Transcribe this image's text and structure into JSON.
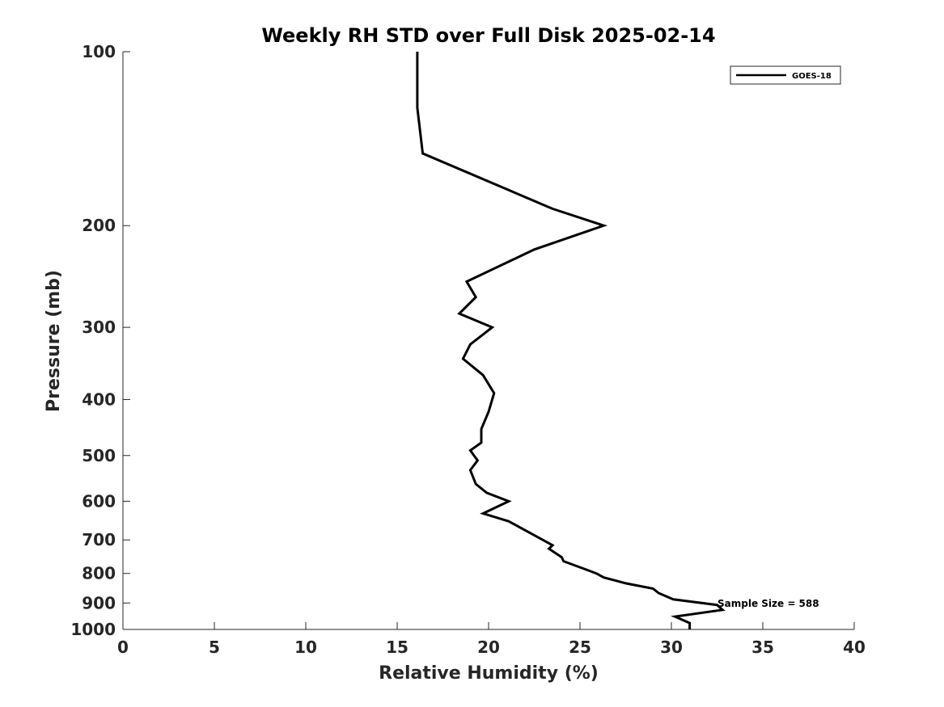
{
  "chart_data": {
    "type": "line",
    "title": "Weekly RH STD over Full Disk 2025-02-14",
    "xlabel": "Relative Humidity (%)",
    "ylabel": "Pressure (mb)",
    "xlim": [
      0,
      40
    ],
    "ylim": [
      100,
      1000
    ],
    "yscale": "log",
    "y_reversed": true,
    "x_ticks": [
      0,
      5,
      10,
      15,
      20,
      25,
      30,
      35,
      40
    ],
    "x_tick_labels": [
      "0",
      "5",
      "10",
      "15",
      "20",
      "25",
      "30",
      "35",
      "40"
    ],
    "y_ticks": [
      100,
      200,
      300,
      400,
      500,
      600,
      700,
      800,
      900,
      1000
    ],
    "y_tick_labels": [
      "100",
      "200",
      "300",
      "400",
      "500",
      "600",
      "700",
      "800",
      "900",
      "1000"
    ],
    "legend_position": "top-right",
    "series": [
      {
        "name": "GOES-18",
        "color": "#000000",
        "points": [
          [
            16.1,
            100
          ],
          [
            16.1,
            125
          ],
          [
            16.4,
            150
          ],
          [
            23.5,
            187
          ],
          [
            26.3,
            200
          ],
          [
            22.5,
            220
          ],
          [
            18.8,
            250
          ],
          [
            19.3,
            266
          ],
          [
            18.4,
            284
          ],
          [
            20.2,
            300
          ],
          [
            19.0,
            321
          ],
          [
            18.6,
            340
          ],
          [
            19.7,
            363
          ],
          [
            20.3,
            390
          ],
          [
            20.0,
            420
          ],
          [
            19.6,
            450
          ],
          [
            19.6,
            475
          ],
          [
            19.0,
            490
          ],
          [
            19.4,
            510
          ],
          [
            19.0,
            530
          ],
          [
            19.3,
            560
          ],
          [
            19.9,
            580
          ],
          [
            21.1,
            600
          ],
          [
            19.7,
            630
          ],
          [
            21.1,
            650
          ],
          [
            22.5,
            687
          ],
          [
            23.5,
            715
          ],
          [
            23.3,
            725
          ],
          [
            24.0,
            750
          ],
          [
            24.1,
            762
          ],
          [
            25.3,
            787
          ],
          [
            25.9,
            800
          ],
          [
            26.3,
            813
          ],
          [
            27.5,
            832
          ],
          [
            29.0,
            850
          ],
          [
            29.3,
            865
          ],
          [
            30.1,
            887
          ],
          [
            32.5,
            907
          ],
          [
            32.8,
            925
          ],
          [
            30.2,
            950
          ],
          [
            31.0,
            975
          ],
          [
            31.0,
            1000
          ]
        ]
      }
    ],
    "annotations": [
      {
        "text": "Sample Size = 588",
        "x": 32.6,
        "y": 900
      }
    ]
  }
}
